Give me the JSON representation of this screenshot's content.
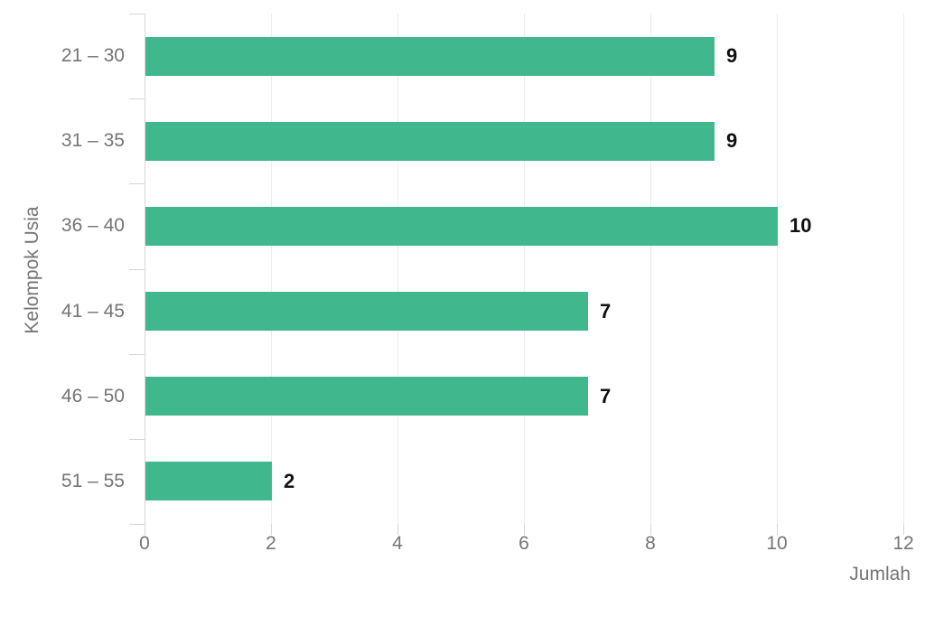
{
  "chart_data": {
    "type": "bar",
    "orientation": "horizontal",
    "categories": [
      "21 – 30",
      "31 – 35",
      "36 – 40",
      "41 – 45",
      "46 – 50",
      "51 – 55"
    ],
    "values": [
      9,
      9,
      10,
      7,
      7,
      2
    ],
    "data_labels": [
      "9",
      "9",
      "10",
      "7",
      "7",
      "2"
    ],
    "title": "",
    "xlabel": "Jumlah",
    "ylabel": "Kelompok Usia",
    "xlim": [
      0,
      12
    ],
    "xticks": [
      0,
      2,
      4,
      6,
      8,
      10,
      12
    ],
    "grid": true,
    "legend": "none",
    "colors": {
      "bar": "#41b78d",
      "axis_text": "#757575",
      "value_label_text": "#111111",
      "axis_line": "#d2d7dc",
      "gridline": "#ececec",
      "background": "#ffffff"
    }
  }
}
